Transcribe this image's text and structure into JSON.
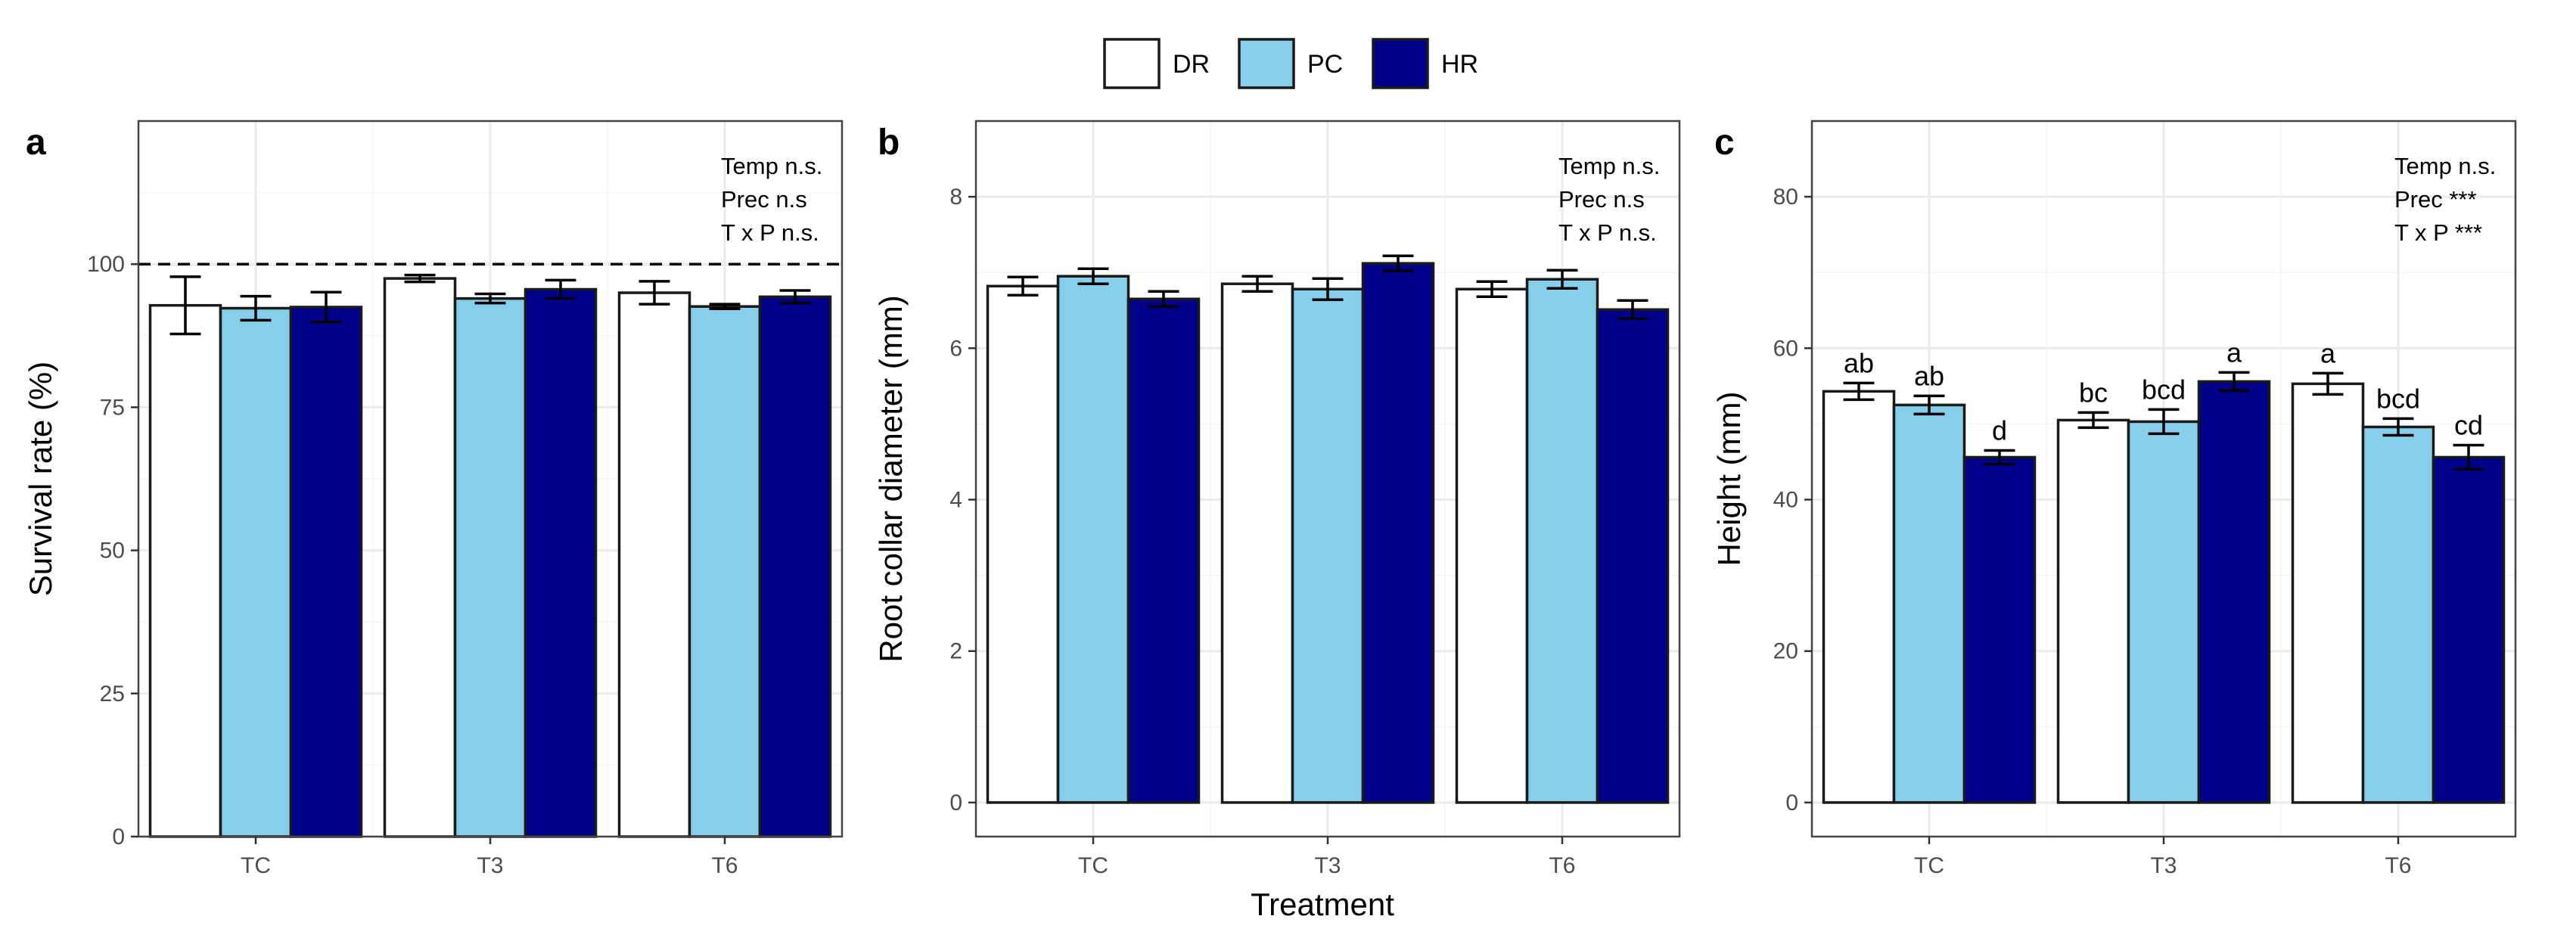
{
  "legend": {
    "items": [
      {
        "key": "DR",
        "label": "DR",
        "color": "#ffffff"
      },
      {
        "key": "PC",
        "label": "PC",
        "color": "#87ceeb"
      },
      {
        "key": "HR",
        "label": "HR",
        "color": "#00008b"
      }
    ],
    "placement": "top-center"
  },
  "shared_xlabel": "Treatment",
  "chart_data": [
    {
      "id": "a",
      "type": "bar",
      "panel_label": "a",
      "ylabel": "Survival rate (%)",
      "xlabel": "",
      "categories": [
        "TC",
        "T3",
        "T6"
      ],
      "ylim": [
        0,
        125
      ],
      "yticks": [
        0,
        25,
        50,
        75,
        100
      ],
      "grid": true,
      "reference_line": {
        "y": 100,
        "style": "dashed"
      },
      "stats_lines": [
        "Temp n.s.",
        "Prec n.s",
        "T x P n.s."
      ],
      "series": [
        {
          "name": "DR",
          "values": [
            92.8,
            97.5,
            95.0
          ],
          "errors": [
            5.0,
            0.6,
            2.0
          ]
        },
        {
          "name": "PC",
          "values": [
            92.3,
            94.0,
            92.6
          ],
          "errors": [
            2.1,
            0.8,
            0.4
          ]
        },
        {
          "name": "HR",
          "values": [
            92.5,
            95.6,
            94.3
          ],
          "errors": [
            2.6,
            1.6,
            1.1
          ]
        }
      ]
    },
    {
      "id": "b",
      "type": "bar",
      "panel_label": "b",
      "ylabel": "Root collar diameter (mm)",
      "xlabel": "Treatment",
      "categories": [
        "TC",
        "T3",
        "T6"
      ],
      "ylim": [
        -0.45,
        9.0
      ],
      "yticks": [
        0,
        2,
        4,
        6,
        8
      ],
      "grid": true,
      "stats_lines": [
        "Temp n.s.",
        "Prec n.s",
        "T x P n.s."
      ],
      "series": [
        {
          "name": "DR",
          "values": [
            6.82,
            6.85,
            6.78
          ],
          "errors": [
            0.12,
            0.1,
            0.1
          ]
        },
        {
          "name": "PC",
          "values": [
            6.95,
            6.78,
            6.91
          ],
          "errors": [
            0.1,
            0.14,
            0.12
          ]
        },
        {
          "name": "HR",
          "values": [
            6.65,
            7.12,
            6.51
          ],
          "errors": [
            0.1,
            0.1,
            0.12
          ]
        }
      ]
    },
    {
      "id": "c",
      "type": "bar",
      "panel_label": "c",
      "ylabel": "Height (mm)",
      "xlabel": "",
      "categories": [
        "TC",
        "T3",
        "T6"
      ],
      "ylim": [
        -4.5,
        90
      ],
      "yticks": [
        0,
        20,
        40,
        60,
        80
      ],
      "grid": true,
      "stats_lines": [
        "Temp n.s.",
        "Prec ***",
        "T x P ***"
      ],
      "series": [
        {
          "name": "DR",
          "values": [
            54.3,
            50.5,
            55.3
          ],
          "errors": [
            1.1,
            1.0,
            1.4
          ],
          "labels": [
            "ab",
            "bc",
            "a"
          ]
        },
        {
          "name": "PC",
          "values": [
            52.5,
            50.3,
            49.6
          ],
          "errors": [
            1.2,
            1.6,
            1.1
          ],
          "labels": [
            "ab",
            "bcd",
            "bcd"
          ]
        },
        {
          "name": "HR",
          "values": [
            45.6,
            55.6,
            45.6
          ],
          "errors": [
            0.9,
            1.2,
            1.6
          ],
          "labels": [
            "d",
            "a",
            "cd"
          ]
        }
      ]
    }
  ]
}
